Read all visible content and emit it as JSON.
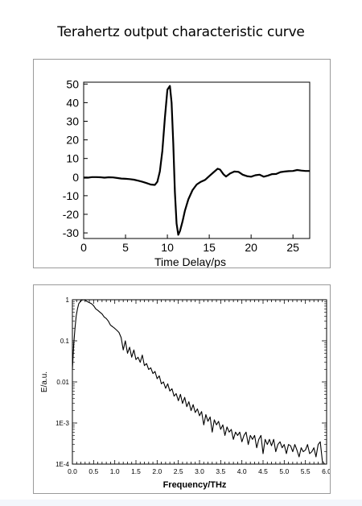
{
  "page": {
    "title": "Terahertz output characteristic curve"
  },
  "chart_data": [
    {
      "type": "line",
      "title": "",
      "xlabel": "Time Delay/ps",
      "ylabel": "",
      "xlim": [
        0,
        27
      ],
      "ylim": [
        -33,
        51
      ],
      "xticks": [
        0,
        5,
        10,
        15,
        20,
        25
      ],
      "yticks": [
        50,
        40,
        30,
        20,
        10,
        0,
        -10,
        -20,
        -30
      ],
      "grid": false,
      "legend": "none",
      "line_color": "#000000",
      "series": [
        {
          "x": [
            0,
            0.5,
            1,
            1.5,
            2,
            2.5,
            3,
            3.5,
            4,
            4.5,
            5,
            5.5,
            6,
            6.5,
            7,
            7.5,
            8,
            8.5,
            8.8,
            9.1,
            9.4,
            9.7,
            10.0,
            10.3,
            10.5,
            10.7,
            10.9,
            11.1,
            11.3,
            11.5,
            11.8,
            12.1,
            12.5,
            13,
            13.5,
            14,
            14.5,
            15,
            15.5,
            16,
            16.3,
            16.7,
            17,
            17.5,
            18,
            18.5,
            19,
            19.5,
            20,
            20.5,
            21,
            21.5,
            22,
            22.5,
            23,
            23.5,
            24,
            24.5,
            25,
            25.5,
            26,
            26.5,
            27
          ],
          "y": [
            -0.3,
            -0.3,
            0,
            0,
            -0.1,
            -0.3,
            -0.1,
            -0.2,
            -0.5,
            -0.8,
            -0.9,
            -1.1,
            -1.4,
            -1.9,
            -2.5,
            -3.2,
            -4,
            -4.2,
            -2.5,
            3,
            14,
            32,
            47,
            49,
            40,
            18,
            -8,
            -25,
            -31,
            -29,
            -24,
            -18,
            -12,
            -7,
            -4,
            -2.5,
            -1.5,
            0.5,
            2.5,
            4.5,
            4,
            1.5,
            0.3,
            2,
            3,
            2.8,
            1.3,
            0.5,
            0.2,
            1,
            1.3,
            0.2,
            0.8,
            1.6,
            1.7,
            2.7,
            3,
            3.2,
            3.3,
            3.8,
            3.5,
            3.3,
            3.3
          ]
        }
      ]
    },
    {
      "type": "line",
      "title": "",
      "xlabel": "Frequency/THz",
      "ylabel": "E/a.u.",
      "yscale": "log",
      "xlim": [
        0,
        6
      ],
      "ylim": [
        0.0001,
        1
      ],
      "xticks": [
        "0.0",
        "0.5",
        "1.0",
        "1.5",
        "2.0",
        "2.5",
        "3.0",
        "3.5",
        "4.0",
        "4.5",
        "5.0",
        "5.5",
        "6.0"
      ],
      "yticks": [
        "1",
        "0.1",
        "0.01",
        "1E-3",
        "1E-4"
      ],
      "grid": false,
      "legend": "none",
      "line_color": "#000000",
      "series": [
        {
          "x": [
            0.0,
            0.03,
            0.06,
            0.09,
            0.12,
            0.15,
            0.2,
            0.25,
            0.3,
            0.35,
            0.4,
            0.45,
            0.5,
            0.55,
            0.6,
            0.65,
            0.7,
            0.75,
            0.8,
            0.85,
            0.9,
            0.95,
            1.0,
            1.05,
            1.1,
            1.15,
            1.2,
            1.25,
            1.3,
            1.35,
            1.4,
            1.45,
            1.5,
            1.55,
            1.6,
            1.65,
            1.7,
            1.75,
            1.8,
            1.85,
            1.9,
            1.95,
            2.0,
            2.05,
            2.1,
            2.15,
            2.2,
            2.25,
            2.3,
            2.35,
            2.4,
            2.45,
            2.5,
            2.55,
            2.6,
            2.65,
            2.7,
            2.75,
            2.8,
            2.85,
            2.9,
            2.95,
            3.0,
            3.05,
            3.1,
            3.15,
            3.2,
            3.25,
            3.3,
            3.35,
            3.4,
            3.45,
            3.5,
            3.55,
            3.6,
            3.65,
            3.7,
            3.75,
            3.8,
            3.85,
            3.9,
            3.95,
            4.0,
            4.05,
            4.1,
            4.15,
            4.2,
            4.25,
            4.3,
            4.35,
            4.4,
            4.45,
            4.5,
            4.55,
            4.6,
            4.65,
            4.7,
            4.75,
            4.8,
            4.85,
            4.9,
            4.95,
            5.0,
            5.05,
            5.1,
            5.15,
            5.2,
            5.25,
            5.3,
            5.35,
            5.4,
            5.45,
            5.5,
            5.55,
            5.6,
            5.65,
            5.7,
            5.75,
            5.8,
            5.85,
            5.9,
            5.95
          ],
          "y": [
            0.02,
            0.08,
            0.2,
            0.4,
            0.6,
            0.8,
            0.95,
            1.0,
            0.98,
            0.9,
            0.85,
            0.8,
            0.72,
            0.6,
            0.55,
            0.5,
            0.45,
            0.38,
            0.35,
            0.3,
            0.24,
            0.22,
            0.2,
            0.18,
            0.16,
            0.12,
            0.06,
            0.1,
            0.05,
            0.07,
            0.04,
            0.06,
            0.035,
            0.04,
            0.03,
            0.045,
            0.025,
            0.028,
            0.02,
            0.022,
            0.016,
            0.018,
            0.012,
            0.014,
            0.009,
            0.01,
            0.007,
            0.009,
            0.006,
            0.0068,
            0.0045,
            0.0052,
            0.0035,
            0.005,
            0.003,
            0.0042,
            0.0025,
            0.0033,
            0.002,
            0.0028,
            0.0018,
            0.0022,
            0.0015,
            0.0019,
            0.0009,
            0.0016,
            0.0011,
            0.0014,
            0.0006,
            0.0012,
            0.0009,
            0.0011,
            0.0007,
            0.0009,
            0.0005,
            0.0008,
            0.0006,
            0.0007,
            0.0004,
            0.0006,
            0.0005,
            0.0006,
            0.00035,
            0.0005,
            0.0006,
            0.0003,
            0.0005,
            0.0004,
            0.0005,
            0.00025,
            0.0004,
            0.0005,
            0.00018,
            0.0004,
            0.0003,
            0.0004,
            0.00028,
            0.0004,
            0.0002,
            0.0003,
            0.00035,
            0.00025,
            0.0003,
            0.00018,
            0.0003,
            0.00028,
            0.0002,
            0.0003,
            0.00022,
            0.00015,
            0.00025,
            0.0002,
            0.00022,
            0.0003,
            0.00018,
            0.0002,
            0.00025,
            0.00015,
            0.0003,
            0.00035,
            0.00012,
            0.0001
          ]
        }
      ]
    }
  ]
}
